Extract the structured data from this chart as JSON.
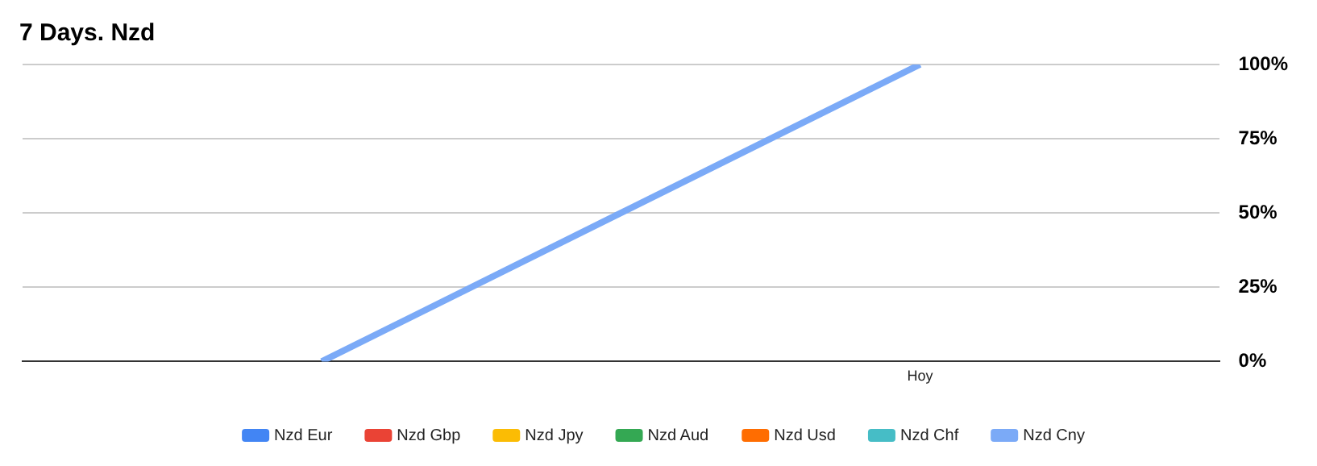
{
  "chart_data": {
    "type": "line",
    "title": "7 Days. Nzd",
    "categories": [
      null,
      "Hoy"
    ],
    "series": [
      {
        "name": "Nzd Eur",
        "color": "#4285f4",
        "values": [
          null,
          null
        ]
      },
      {
        "name": "Nzd Gbp",
        "color": "#ea4335",
        "values": [
          null,
          null
        ]
      },
      {
        "name": "Nzd Jpy",
        "color": "#fbbc04",
        "values": [
          null,
          null
        ]
      },
      {
        "name": "Nzd Aud",
        "color": "#34a853",
        "values": [
          null,
          null
        ]
      },
      {
        "name": "Nzd Usd",
        "color": "#ff6d01",
        "values": [
          null,
          null
        ]
      },
      {
        "name": "Nzd Chf",
        "color": "#46bdc6",
        "values": [
          null,
          null
        ]
      },
      {
        "name": "Nzd Cny",
        "color": "#7baaf7",
        "values": [
          0,
          100
        ]
      }
    ],
    "ylim": [
      0,
      100
    ],
    "yticks": [
      {
        "value": 0,
        "label": "0%"
      },
      {
        "value": 25,
        "label": "25%"
      },
      {
        "value": 50,
        "label": "50%"
      },
      {
        "value": 75,
        "label": "75%"
      },
      {
        "value": 100,
        "label": "100%"
      }
    ],
    "grid": "y",
    "legend": "bottom",
    "marker": "none",
    "line_style": "solid"
  }
}
